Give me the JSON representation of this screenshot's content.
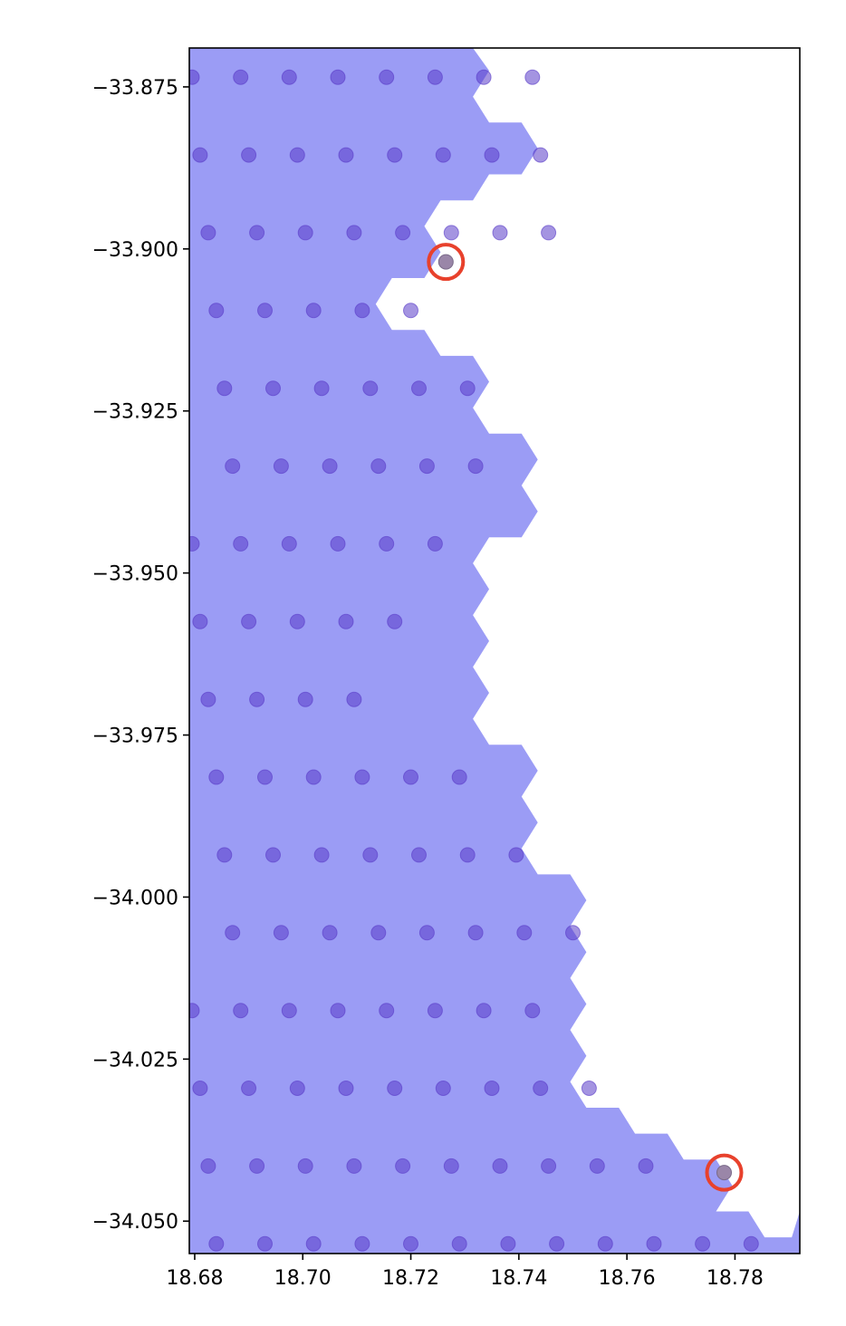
{
  "chart_data": {
    "type": "scatter",
    "title": "",
    "xlabel": "",
    "ylabel": "",
    "xlim": [
      18.679,
      18.792
    ],
    "ylim": [
      -34.055,
      -33.869
    ],
    "grid": false,
    "legend": "none",
    "x_ticks": [
      "18.68",
      "18.70",
      "18.72",
      "18.74",
      "18.76",
      "18.78"
    ],
    "y_ticks": [
      "−33.875",
      "−33.900",
      "−33.925",
      "−33.950",
      "−33.975",
      "−34.000",
      "−34.025",
      "−34.050"
    ],
    "colors": {
      "hex_fill": "#9b9cf5",
      "point": "#5a3cc8",
      "highlight_ring": "#e8412c",
      "highlight_point": "#9a86a8"
    },
    "hex_region_boundary": [
      [
        18.679,
        -33.869
      ],
      [
        18.7315,
        -33.869
      ],
      [
        18.7345,
        -33.8725
      ],
      [
        18.7315,
        -33.8765
      ],
      [
        18.7345,
        -33.8805
      ],
      [
        18.7405,
        -33.8805
      ],
      [
        18.7435,
        -33.8845
      ],
      [
        18.7405,
        -33.8885
      ],
      [
        18.7345,
        -33.8885
      ],
      [
        18.7315,
        -33.8925
      ],
      [
        18.7255,
        -33.8925
      ],
      [
        18.7225,
        -33.8965
      ],
      [
        18.7255,
        -33.9005
      ],
      [
        18.7225,
        -33.9045
      ],
      [
        18.7165,
        -33.9045
      ],
      [
        18.7135,
        -33.9085
      ],
      [
        18.7165,
        -33.9125
      ],
      [
        18.7225,
        -33.9125
      ],
      [
        18.7255,
        -33.9165
      ],
      [
        18.7315,
        -33.9165
      ],
      [
        18.7345,
        -33.9205
      ],
      [
        18.7315,
        -33.9245
      ],
      [
        18.7345,
        -33.9285
      ],
      [
        18.7405,
        -33.9285
      ],
      [
        18.7435,
        -33.9325
      ],
      [
        18.7405,
        -33.9365
      ],
      [
        18.7435,
        -33.9405
      ],
      [
        18.7405,
        -33.9445
      ],
      [
        18.7345,
        -33.9445
      ],
      [
        18.7315,
        -33.9485
      ],
      [
        18.7345,
        -33.9525
      ],
      [
        18.7315,
        -33.9565
      ],
      [
        18.7345,
        -33.9605
      ],
      [
        18.7315,
        -33.9645
      ],
      [
        18.7345,
        -33.9685
      ],
      [
        18.7315,
        -33.9725
      ],
      [
        18.7345,
        -33.9765
      ],
      [
        18.7405,
        -33.9765
      ],
      [
        18.7435,
        -33.9805
      ],
      [
        18.7405,
        -33.9845
      ],
      [
        18.7435,
        -33.9885
      ],
      [
        18.7405,
        -33.9925
      ],
      [
        18.7435,
        -33.9965
      ],
      [
        18.7495,
        -33.9965
      ],
      [
        18.7525,
        -34.0005
      ],
      [
        18.7495,
        -34.0045
      ],
      [
        18.7525,
        -34.0085
      ],
      [
        18.7495,
        -34.0125
      ],
      [
        18.7525,
        -34.0165
      ],
      [
        18.7495,
        -34.0205
      ],
      [
        18.7525,
        -34.0245
      ],
      [
        18.7495,
        -34.0285
      ],
      [
        18.7525,
        -34.0325
      ],
      [
        18.7585,
        -34.0325
      ],
      [
        18.7615,
        -34.0365
      ],
      [
        18.7675,
        -34.0365
      ],
      [
        18.7705,
        -34.0405
      ],
      [
        18.7765,
        -34.0405
      ],
      [
        18.7795,
        -34.0445
      ],
      [
        18.7765,
        -34.0485
      ],
      [
        18.7825,
        -34.0485
      ],
      [
        18.7855,
        -34.0525
      ],
      [
        18.7905,
        -34.0525
      ],
      [
        18.792,
        -34.0485
      ],
      [
        18.792,
        -34.055
      ],
      [
        18.679,
        -34.055
      ]
    ],
    "series": [
      {
        "x": [
          18.6795,
          18.6885,
          18.6975,
          18.7065,
          18.7155,
          18.7245,
          18.7335,
          18.7425,
          18.681,
          18.69,
          18.699,
          18.708,
          18.717,
          18.726,
          18.735,
          18.744,
          18.6825,
          18.6915,
          18.7005,
          18.7095,
          18.7185,
          18.7275,
          18.7365,
          18.7455,
          18.684,
          18.693,
          18.702,
          18.711,
          18.72,
          18.6855,
          18.6945,
          18.7035,
          18.7125,
          18.7215,
          18.7305,
          18.687,
          18.696,
          18.705,
          18.714,
          18.723,
          18.732,
          18.6795,
          18.6885,
          18.6975,
          18.7065,
          18.7155,
          18.7245,
          18.681,
          18.69,
          18.699,
          18.708,
          18.717,
          18.6825,
          18.6915,
          18.7005,
          18.7095,
          18.684,
          18.693,
          18.702,
          18.711,
          18.72,
          18.729,
          18.6855,
          18.6945,
          18.7035,
          18.7125,
          18.7215,
          18.7305,
          18.7395,
          18.687,
          18.696,
          18.705,
          18.714,
          18.723,
          18.732,
          18.741,
          18.75,
          18.6795,
          18.6885,
          18.6975,
          18.7065,
          18.7155,
          18.7245,
          18.7335,
          18.7425,
          18.681,
          18.69,
          18.699,
          18.708,
          18.717,
          18.726,
          18.735,
          18.744,
          18.753,
          18.6825,
          18.6915,
          18.7005,
          18.7095,
          18.7185,
          18.7275,
          18.7365,
          18.7455,
          18.7545,
          18.7635,
          18.684,
          18.693,
          18.702,
          18.711,
          18.72,
          18.729,
          18.738,
          18.747,
          18.756,
          18.765,
          18.774,
          18.783
        ],
        "y": [
          -33.8735,
          -33.8735,
          -33.8735,
          -33.8735,
          -33.8735,
          -33.8735,
          -33.8735,
          -33.8735,
          -33.8855,
          -33.8855,
          -33.8855,
          -33.8855,
          -33.8855,
          -33.8855,
          -33.8855,
          -33.8855,
          -33.8975,
          -33.8975,
          -33.8975,
          -33.8975,
          -33.8975,
          -33.8975,
          -33.8975,
          -33.8975,
          -33.9095,
          -33.9095,
          -33.9095,
          -33.9095,
          -33.9095,
          -33.9215,
          -33.9215,
          -33.9215,
          -33.9215,
          -33.9215,
          -33.9215,
          -33.9335,
          -33.9335,
          -33.9335,
          -33.9335,
          -33.9335,
          -33.9335,
          -33.9455,
          -33.9455,
          -33.9455,
          -33.9455,
          -33.9455,
          -33.9455,
          -33.9575,
          -33.9575,
          -33.9575,
          -33.9575,
          -33.9575,
          -33.9695,
          -33.9695,
          -33.9695,
          -33.9695,
          -33.9815,
          -33.9815,
          -33.9815,
          -33.9815,
          -33.9815,
          -33.9815,
          -33.9935,
          -33.9935,
          -33.9935,
          -33.9935,
          -33.9935,
          -33.9935,
          -33.9935,
          -34.0055,
          -34.0055,
          -34.0055,
          -34.0055,
          -34.0055,
          -34.0055,
          -34.0055,
          -34.0055,
          -34.0175,
          -34.0175,
          -34.0175,
          -34.0175,
          -34.0175,
          -34.0175,
          -34.0175,
          -34.0175,
          -34.0295,
          -34.0295,
          -34.0295,
          -34.0295,
          -34.0295,
          -34.0295,
          -34.0295,
          -34.0295,
          -34.0295,
          -34.0415,
          -34.0415,
          -34.0415,
          -34.0415,
          -34.0415,
          -34.0415,
          -34.0415,
          -34.0415,
          -34.0415,
          -34.0415,
          -34.0535,
          -34.0535,
          -34.0535,
          -34.0535,
          -34.0535,
          -34.0535,
          -34.0535,
          -34.0535,
          -34.0535,
          -34.0535,
          -34.0535,
          -34.0535
        ]
      }
    ],
    "highlighted": [
      {
        "x": 18.7265,
        "y": -33.902
      },
      {
        "x": 18.778,
        "y": -34.0425
      }
    ]
  }
}
